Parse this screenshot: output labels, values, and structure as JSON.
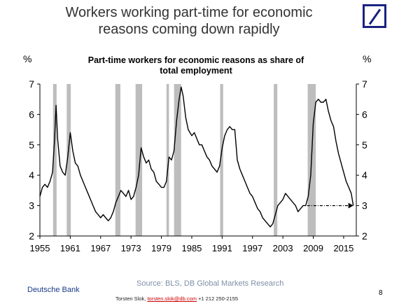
{
  "slide": {
    "title_line1": "Workers working part-time for economic",
    "title_line2": "reasons coming down rapidly"
  },
  "brand": {
    "logo_icon": "deutsche-bank-logo-icon",
    "logo_color": "#1a237e"
  },
  "chart_data": {
    "type": "line",
    "title_line1": "Part-time workers for economic reasons as share of",
    "title_line2": "total employment",
    "ylabel_left": "%",
    "ylabel_right": "%",
    "ylim": [
      2,
      7
    ],
    "yticks": [
      2,
      3,
      4,
      5,
      6,
      7
    ],
    "xlim": [
      1955,
      2017.5
    ],
    "xticks": [
      1955,
      1961,
      1967,
      1973,
      1979,
      1985,
      1991,
      1997,
      2003,
      2009,
      2015
    ],
    "line_color": "#000000",
    "recession_color": "#bdbdbd",
    "recessions": [
      [
        1957.6,
        1958.3
      ],
      [
        1960.3,
        1961.1
      ],
      [
        1969.9,
        1970.9
      ],
      [
        1973.9,
        1975.2
      ],
      [
        1980.0,
        1980.5
      ],
      [
        1981.5,
        1982.9
      ],
      [
        1990.6,
        1991.2
      ],
      [
        2001.2,
        2001.9
      ],
      [
        2007.9,
        2009.5
      ]
    ],
    "series": [
      {
        "values": [
          [
            1955.0,
            3.3
          ],
          [
            1955.5,
            3.6
          ],
          [
            1956.0,
            3.7
          ],
          [
            1956.5,
            3.6
          ],
          [
            1957.0,
            3.8
          ],
          [
            1957.5,
            4.1
          ],
          [
            1957.9,
            5.2
          ],
          [
            1958.2,
            6.3
          ],
          [
            1958.5,
            5.2
          ],
          [
            1959.0,
            4.3
          ],
          [
            1959.5,
            4.1
          ],
          [
            1960.0,
            4.0
          ],
          [
            1960.5,
            4.6
          ],
          [
            1961.0,
            5.4
          ],
          [
            1961.5,
            4.8
          ],
          [
            1962.0,
            4.4
          ],
          [
            1962.5,
            4.3
          ],
          [
            1963.0,
            4.0
          ],
          [
            1963.5,
            3.8
          ],
          [
            1964.0,
            3.6
          ],
          [
            1964.5,
            3.4
          ],
          [
            1965.0,
            3.2
          ],
          [
            1965.5,
            3.0
          ],
          [
            1966.0,
            2.8
          ],
          [
            1966.5,
            2.7
          ],
          [
            1967.0,
            2.6
          ],
          [
            1967.5,
            2.7
          ],
          [
            1968.0,
            2.6
          ],
          [
            1968.5,
            2.5
          ],
          [
            1969.0,
            2.6
          ],
          [
            1969.5,
            2.8
          ],
          [
            1970.0,
            3.1
          ],
          [
            1970.5,
            3.3
          ],
          [
            1971.0,
            3.5
          ],
          [
            1971.5,
            3.4
          ],
          [
            1972.0,
            3.3
          ],
          [
            1972.5,
            3.5
          ],
          [
            1973.0,
            3.2
          ],
          [
            1973.5,
            3.3
          ],
          [
            1974.0,
            3.6
          ],
          [
            1974.5,
            4.0
          ],
          [
            1975.0,
            4.9
          ],
          [
            1975.5,
            4.6
          ],
          [
            1976.0,
            4.4
          ],
          [
            1976.5,
            4.5
          ],
          [
            1977.0,
            4.2
          ],
          [
            1977.5,
            4.1
          ],
          [
            1978.0,
            3.8
          ],
          [
            1978.5,
            3.7
          ],
          [
            1979.0,
            3.6
          ],
          [
            1979.5,
            3.6
          ],
          [
            1980.0,
            3.8
          ],
          [
            1980.5,
            4.6
          ],
          [
            1981.0,
            4.5
          ],
          [
            1981.5,
            4.8
          ],
          [
            1982.0,
            5.8
          ],
          [
            1982.5,
            6.5
          ],
          [
            1982.9,
            6.9
          ],
          [
            1983.3,
            6.6
          ],
          [
            1983.8,
            5.9
          ],
          [
            1984.3,
            5.5
          ],
          [
            1985.0,
            5.3
          ],
          [
            1985.5,
            5.4
          ],
          [
            1986.0,
            5.2
          ],
          [
            1986.5,
            5.0
          ],
          [
            1987.0,
            5.0
          ],
          [
            1987.5,
            4.8
          ],
          [
            1988.0,
            4.6
          ],
          [
            1988.5,
            4.5
          ],
          [
            1989.0,
            4.3
          ],
          [
            1989.5,
            4.2
          ],
          [
            1990.0,
            4.1
          ],
          [
            1990.5,
            4.3
          ],
          [
            1991.0,
            4.9
          ],
          [
            1991.5,
            5.3
          ],
          [
            1992.0,
            5.5
          ],
          [
            1992.5,
            5.6
          ],
          [
            1993.0,
            5.5
          ],
          [
            1993.5,
            5.5
          ],
          [
            1994.0,
            4.5
          ],
          [
            1994.5,
            4.2
          ],
          [
            1995.0,
            4.0
          ],
          [
            1995.5,
            3.8
          ],
          [
            1996.0,
            3.6
          ],
          [
            1996.5,
            3.4
          ],
          [
            1997.0,
            3.3
          ],
          [
            1997.5,
            3.1
          ],
          [
            1998.0,
            2.9
          ],
          [
            1998.5,
            2.8
          ],
          [
            1999.0,
            2.6
          ],
          [
            1999.5,
            2.5
          ],
          [
            2000.0,
            2.4
          ],
          [
            2000.5,
            2.3
          ],
          [
            2001.0,
            2.4
          ],
          [
            2001.5,
            2.7
          ],
          [
            2002.0,
            3.0
          ],
          [
            2002.5,
            3.1
          ],
          [
            2003.0,
            3.2
          ],
          [
            2003.5,
            3.4
          ],
          [
            2004.0,
            3.3
          ],
          [
            2004.5,
            3.2
          ],
          [
            2005.0,
            3.1
          ],
          [
            2005.5,
            3.0
          ],
          [
            2006.0,
            2.8
          ],
          [
            2006.5,
            2.9
          ],
          [
            2007.0,
            3.0
          ],
          [
            2007.5,
            3.0
          ],
          [
            2008.0,
            3.3
          ],
          [
            2008.5,
            4.0
          ],
          [
            2009.0,
            5.7
          ],
          [
            2009.5,
            6.4
          ],
          [
            2010.0,
            6.5
          ],
          [
            2010.5,
            6.4
          ],
          [
            2011.0,
            6.4
          ],
          [
            2011.5,
            6.5
          ],
          [
            2012.0,
            6.1
          ],
          [
            2012.5,
            5.8
          ],
          [
            2013.0,
            5.6
          ],
          [
            2013.5,
            5.1
          ],
          [
            2014.0,
            4.7
          ],
          [
            2014.5,
            4.4
          ],
          [
            2015.0,
            4.1
          ],
          [
            2015.5,
            3.8
          ],
          [
            2016.0,
            3.6
          ],
          [
            2016.5,
            3.4
          ],
          [
            2016.9,
            3.0
          ]
        ]
      }
    ],
    "annotation": {
      "type": "dashed-arrow",
      "from": [
        2007.8,
        3.0
      ],
      "to": [
        2016.9,
        3.0
      ]
    }
  },
  "footer": {
    "source": "Source: BLS, DB Global Markets Research",
    "brand": "Deutsche Bank",
    "contact_name": "Torsten Slok,",
    "contact_email": "torsten.slok@db.com",
    "contact_phone": "+1 212 250-2155",
    "page_number": "8"
  }
}
